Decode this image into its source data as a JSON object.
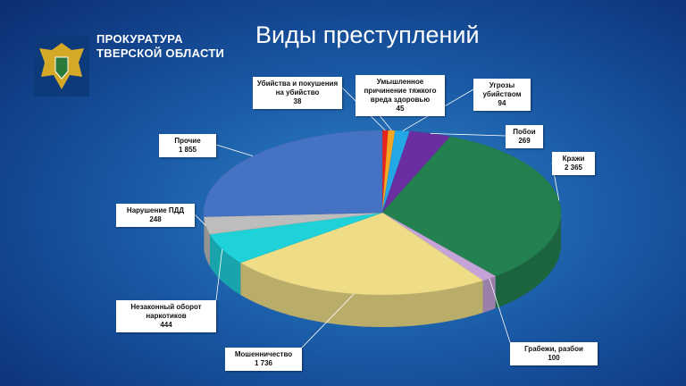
{
  "header": {
    "org": [
      "ПРОКУРАТУРА",
      "ТВЕРСКОЙ ОБЛАСТИ"
    ]
  },
  "chart_data": {
    "type": "pie",
    "title": "Виды преступлений",
    "categories": [
      "Убийства и покушения на убийство",
      "Умышленное причинение тяжкого вреда здоровью",
      "Угрозы убийством",
      "Побои",
      "Кражи",
      "Грабежи, разбои",
      "Мошенничество",
      "Незаконный оборот наркотиков",
      "Нарушение ПДД",
      "Прочие"
    ],
    "values": [
      38,
      45,
      94,
      269,
      2365,
      100,
      1736,
      444,
      248,
      1855
    ],
    "value_labels": [
      "38",
      "45",
      "94",
      "269",
      "2 365",
      "100",
      "1 736",
      "444",
      "248",
      "1 855"
    ],
    "colors": [
      "#e8241c",
      "#f5a623",
      "#23a7e6",
      "#6a2ea0",
      "#23804f",
      "#c6a3d8",
      "#eedc86",
      "#1fd2da",
      "#bdbdbd",
      "#4672c4"
    ]
  }
}
